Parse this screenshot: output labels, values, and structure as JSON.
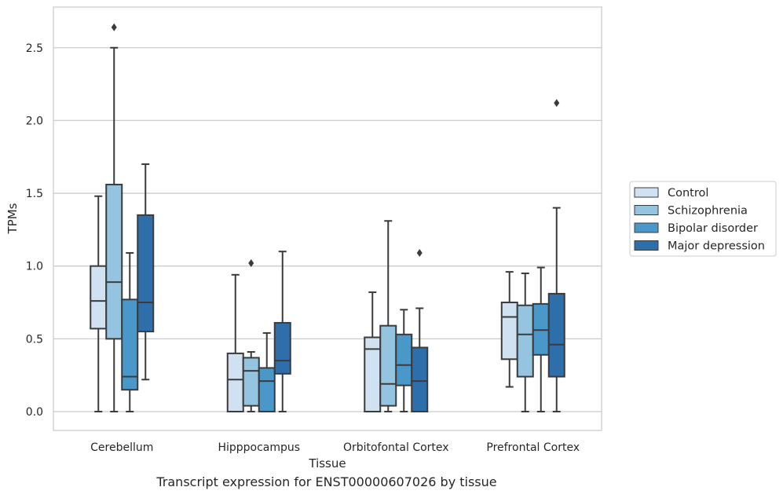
{
  "caption": "Transcript expression for ENST00000607026 by tissue",
  "chart_data": {
    "type": "box",
    "xlabel": "Tissue",
    "ylabel": "TPMs",
    "ylim": [
      -0.13,
      2.78
    ],
    "yticks": [
      0.0,
      0.5,
      1.0,
      1.5,
      2.0,
      2.5
    ],
    "ytick_labels": [
      "0.0",
      "0.5",
      "1.0",
      "1.5",
      "2.0",
      "2.5"
    ],
    "grid": "horizontal",
    "legend_position": "right",
    "categories": [
      "Cerebellum",
      "Hipppocampus",
      "Orbitofontal Cortex",
      "Prefrontal Cortex"
    ],
    "series": [
      {
        "name": "Control",
        "color": "#d0e1f2",
        "boxes": [
          {
            "whislo": 0.0,
            "q1": 0.57,
            "med": 0.76,
            "q3": 1.0,
            "whishi": 1.48,
            "fliers": []
          },
          {
            "whislo": 0.0,
            "q1": 0.0,
            "med": 0.22,
            "q3": 0.4,
            "whishi": 0.94,
            "fliers": []
          },
          {
            "whislo": 0.0,
            "q1": 0.0,
            "med": 0.43,
            "q3": 0.51,
            "whishi": 0.82,
            "fliers": []
          },
          {
            "whislo": 0.17,
            "q1": 0.36,
            "med": 0.65,
            "q3": 0.75,
            "whishi": 0.96,
            "fliers": []
          }
        ]
      },
      {
        "name": "Schizophrenia",
        "color": "#94c4df",
        "boxes": [
          {
            "whislo": 0.0,
            "q1": 0.5,
            "med": 0.89,
            "q3": 1.56,
            "whishi": 2.5,
            "fliers": [
              2.64
            ]
          },
          {
            "whislo": 0.0,
            "q1": 0.04,
            "med": 0.28,
            "q3": 0.37,
            "whishi": 0.41,
            "fliers": [
              1.02
            ]
          },
          {
            "whislo": 0.0,
            "q1": 0.04,
            "med": 0.19,
            "q3": 0.59,
            "whishi": 1.31,
            "fliers": []
          },
          {
            "whislo": 0.0,
            "q1": 0.24,
            "med": 0.53,
            "q3": 0.73,
            "whishi": 0.95,
            "fliers": []
          }
        ]
      },
      {
        "name": "Bipolar disorder",
        "color": "#4a98c9",
        "boxes": [
          {
            "whislo": 0.0,
            "q1": 0.15,
            "med": 0.24,
            "q3": 0.77,
            "whishi": 1.09,
            "fliers": []
          },
          {
            "whislo": 0.0,
            "q1": 0.0,
            "med": 0.21,
            "q3": 0.3,
            "whishi": 0.54,
            "fliers": []
          },
          {
            "whislo": 0.0,
            "q1": 0.18,
            "med": 0.32,
            "q3": 0.53,
            "whishi": 0.7,
            "fliers": []
          },
          {
            "whislo": 0.0,
            "q1": 0.39,
            "med": 0.56,
            "q3": 0.74,
            "whishi": 0.99,
            "fliers": []
          }
        ]
      },
      {
        "name": "Major depression",
        "color": "#2e6fab",
        "boxes": [
          {
            "whislo": 0.22,
            "q1": 0.55,
            "med": 0.75,
            "q3": 1.35,
            "whishi": 1.7,
            "fliers": []
          },
          {
            "whislo": 0.0,
            "q1": 0.26,
            "med": 0.35,
            "q3": 0.61,
            "whishi": 1.1,
            "fliers": []
          },
          {
            "whislo": 0.0,
            "q1": 0.0,
            "med": 0.21,
            "q3": 0.44,
            "whishi": 0.71,
            "fliers": [
              1.09
            ]
          },
          {
            "whislo": 0.0,
            "q1": 0.24,
            "med": 0.46,
            "q3": 0.81,
            "whishi": 1.4,
            "fliers": [
              2.12
            ]
          }
        ]
      }
    ]
  }
}
